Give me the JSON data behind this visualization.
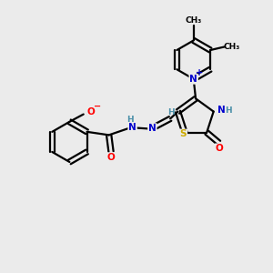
{
  "bg_color": "#ebebeb",
  "atom_colors": {
    "C": "#000000",
    "N": "#0000cd",
    "O": "#ff0000",
    "S": "#ccaa00",
    "H": "#4a8fa8",
    "N+": "#0000cd"
  },
  "bond_color": "#000000",
  "figsize": [
    3.0,
    3.0
  ],
  "dpi": 100
}
